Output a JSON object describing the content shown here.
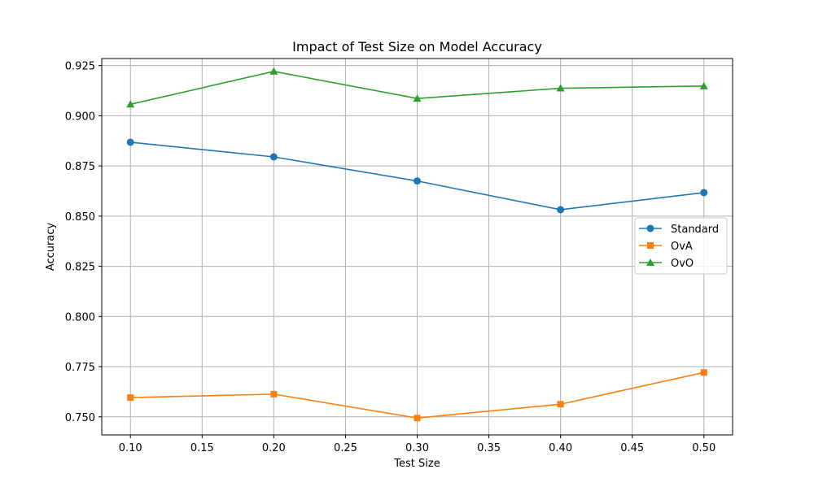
{
  "chart_data": {
    "type": "line",
    "title": "Impact of Test Size on Model Accuracy",
    "xlabel": "Test Size",
    "ylabel": "Accuracy",
    "x": [
      0.1,
      0.2,
      0.3,
      0.4,
      0.5
    ],
    "xlim": [
      0.08,
      0.52
    ],
    "ylim": [
      0.741,
      0.9285
    ],
    "xticks": [
      0.1,
      0.15,
      0.2,
      0.25,
      0.3,
      0.35,
      0.4,
      0.45,
      0.5
    ],
    "xtick_labels": [
      "0.10",
      "0.15",
      "0.20",
      "0.25",
      "0.30",
      "0.35",
      "0.40",
      "0.45",
      "0.50"
    ],
    "yticks": [
      0.75,
      0.775,
      0.8,
      0.825,
      0.85,
      0.875,
      0.9,
      0.925
    ],
    "ytick_labels": [
      "0.750",
      "0.775",
      "0.800",
      "0.825",
      "0.850",
      "0.875",
      "0.900",
      "0.925"
    ],
    "grid": true,
    "legend_position": "center-right",
    "series": [
      {
        "name": "Standard",
        "color": "#1f77b4",
        "marker": "circle",
        "values": [
          0.8868,
          0.8795,
          0.8675,
          0.8532,
          0.8617
        ]
      },
      {
        "name": "OvA",
        "color": "#ff7f0e",
        "marker": "square",
        "values": [
          0.7596,
          0.7613,
          0.7494,
          0.7563,
          0.7721
        ]
      },
      {
        "name": "OvO",
        "color": "#2ca02c",
        "marker": "triangle",
        "values": [
          0.9057,
          0.9221,
          0.9086,
          0.9137,
          0.9148
        ]
      }
    ]
  }
}
